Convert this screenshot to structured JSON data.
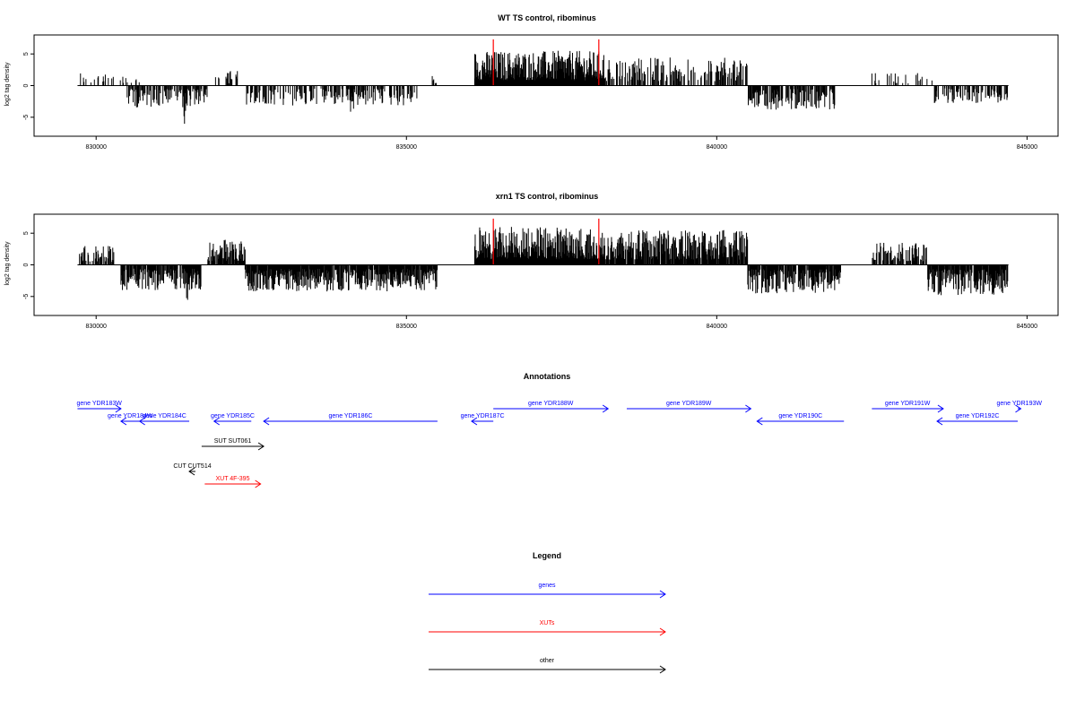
{
  "chart_data": [
    {
      "type": "bar",
      "title": "WT TS control, ribominus",
      "xlabel": "",
      "ylabel": "log2 tag density",
      "xlim": [
        829000,
        845500
      ],
      "ylim": [
        -8,
        8
      ],
      "x_ticks": [
        830000,
        835000,
        840000,
        845000
      ],
      "x_tick_labels": [
        "830000",
        "835000",
        "840000",
        "845000"
      ],
      "y_ticks": [
        -5,
        0,
        5
      ],
      "y_tick_labels": [
        "-5",
        "0",
        "5"
      ],
      "baseline_range": [
        829700,
        844700
      ],
      "highlight_color": "#ff0000",
      "highlight_positions": [
        836400,
        838100
      ],
      "highlight_value": 7.3,
      "profile": [
        {
          "from": 829700,
          "to": 830300,
          "sign": 1,
          "amp": 2.2,
          "density": 0.25
        },
        {
          "from": 830350,
          "to": 830700,
          "sign": 1,
          "amp": 1.5,
          "density": 0.25
        },
        {
          "from": 830500,
          "to": 831800,
          "sign": -1,
          "amp": 3.5,
          "density": 0.6
        },
        {
          "from": 831400,
          "to": 831450,
          "sign": -1,
          "amp": 6.3,
          "density": 1
        },
        {
          "from": 831900,
          "to": 832300,
          "sign": 1,
          "amp": 2.4,
          "density": 0.35
        },
        {
          "from": 832400,
          "to": 835200,
          "sign": -1,
          "amp": 3.2,
          "density": 0.45
        },
        {
          "from": 834100,
          "to": 834150,
          "sign": -1,
          "amp": 4.5,
          "density": 1
        },
        {
          "from": 835400,
          "to": 835500,
          "sign": 1,
          "amp": 2.6,
          "density": 0.5
        },
        {
          "from": 836100,
          "to": 838200,
          "sign": 1,
          "amp": 5.5,
          "density": 1
        },
        {
          "from": 838200,
          "to": 840500,
          "sign": 1,
          "amp": 4.5,
          "density": 0.5
        },
        {
          "from": 840500,
          "to": 841900,
          "sign": -1,
          "amp": 3.8,
          "density": 0.7
        },
        {
          "from": 842500,
          "to": 843500,
          "sign": 1,
          "amp": 2.0,
          "density": 0.2
        },
        {
          "from": 843500,
          "to": 844700,
          "sign": -1,
          "amp": 2.8,
          "density": 0.5
        }
      ]
    },
    {
      "type": "bar",
      "title": "xrn1 TS control, ribominus",
      "xlabel": "",
      "ylabel": "log2 tag density",
      "xlim": [
        829000,
        845500
      ],
      "ylim": [
        -8,
        8
      ],
      "x_ticks": [
        830000,
        835000,
        840000,
        845000
      ],
      "x_tick_labels": [
        "830000",
        "835000",
        "840000",
        "845000"
      ],
      "y_ticks": [
        -5,
        0,
        5
      ],
      "y_tick_labels": [
        "-5",
        "0",
        "5"
      ],
      "baseline_range": [
        829700,
        844700
      ],
      "highlight_color": "#ff0000",
      "highlight_positions": [
        836400,
        838100
      ],
      "highlight_value": 7.3,
      "profile": [
        {
          "from": 829700,
          "to": 830300,
          "sign": 1,
          "amp": 3.0,
          "density": 0.5
        },
        {
          "from": 830400,
          "to": 831700,
          "sign": -1,
          "amp": 4.0,
          "density": 0.8
        },
        {
          "from": 831450,
          "to": 831500,
          "sign": -1,
          "amp": 7.3,
          "density": 1
        },
        {
          "from": 831800,
          "to": 832400,
          "sign": 1,
          "amp": 4.0,
          "density": 0.8
        },
        {
          "from": 832400,
          "to": 835500,
          "sign": -1,
          "amp": 4.2,
          "density": 0.9
        },
        {
          "from": 836100,
          "to": 838200,
          "sign": 1,
          "amp": 6.0,
          "density": 1
        },
        {
          "from": 838200,
          "to": 840500,
          "sign": 1,
          "amp": 5.5,
          "density": 0.85
        },
        {
          "from": 840500,
          "to": 842000,
          "sign": -1,
          "amp": 4.5,
          "density": 0.9
        },
        {
          "from": 842500,
          "to": 843400,
          "sign": 1,
          "amp": 3.5,
          "density": 0.6
        },
        {
          "from": 843400,
          "to": 844700,
          "sign": -1,
          "amp": 4.8,
          "density": 0.85
        }
      ]
    }
  ],
  "annotations": {
    "title": "Annotations",
    "items": [
      {
        "label": "gene YDR183W",
        "start": 829700,
        "end": 830400,
        "strand": "+",
        "color": "#0000ff",
        "row": 0
      },
      {
        "label": "gene YDR184W",
        "start": 830400,
        "end": 830700,
        "strand": "-",
        "color": "#0000ff",
        "row": 1
      },
      {
        "label": "gene YDR184C",
        "start": 830700,
        "end": 831500,
        "strand": "-",
        "color": "#0000ff",
        "row": 1
      },
      {
        "label": "gene YDR185C",
        "start": 831900,
        "end": 832500,
        "strand": "-",
        "color": "#0000ff",
        "row": 1
      },
      {
        "label": "gene YDR186C",
        "start": 832700,
        "end": 835500,
        "strand": "-",
        "color": "#0000ff",
        "row": 1
      },
      {
        "label": "gene YDR187C",
        "start": 836050,
        "end": 836400,
        "strand": "-",
        "color": "#0000ff",
        "row": 1
      },
      {
        "label": "gene YDR188W",
        "start": 836400,
        "end": 838250,
        "strand": "+",
        "color": "#0000ff",
        "row": 0
      },
      {
        "label": "gene YDR189W",
        "start": 838550,
        "end": 840550,
        "strand": "+",
        "color": "#0000ff",
        "row": 0
      },
      {
        "label": "gene YDR190C",
        "start": 840650,
        "end": 842050,
        "strand": "-",
        "color": "#0000ff",
        "row": 1
      },
      {
        "label": "gene YDR191W",
        "start": 842500,
        "end": 843650,
        "strand": "+",
        "color": "#0000ff",
        "row": 0
      },
      {
        "label": "gene YDR192C",
        "start": 843550,
        "end": 844850,
        "strand": "-",
        "color": "#0000ff",
        "row": 1
      },
      {
        "label": "gene YDR193W",
        "start": 844850,
        "end": 844900,
        "strand": "+",
        "color": "#0000ff",
        "row": 0
      },
      {
        "label": "SUT SUT061",
        "start": 831700,
        "end": 832700,
        "strand": "+",
        "color": "#000000",
        "row": 3
      },
      {
        "label": "CUT CUT514",
        "start": 831500,
        "end": 831600,
        "strand": "-",
        "color": "#000000",
        "row": 5
      },
      {
        "label": "XUT 4F-395",
        "start": 831750,
        "end": 832650,
        "strand": "+",
        "color": "#ff0000",
        "row": 6
      }
    ]
  },
  "legend": {
    "title": "Legend",
    "items": [
      {
        "label": "genes",
        "color": "#0000ff"
      },
      {
        "label": "XUTs",
        "color": "#ff0000"
      },
      {
        "label": "other",
        "color": "#000000"
      }
    ]
  }
}
